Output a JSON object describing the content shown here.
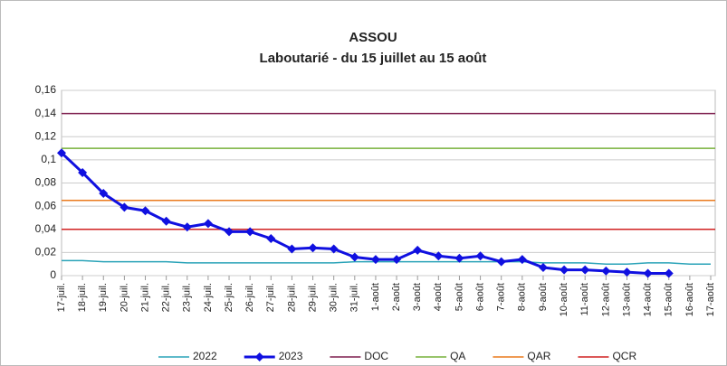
{
  "chart_data": {
    "type": "line",
    "title": "ASSOU",
    "subtitle": "Laboutarié - du 15 juillet au 15 août",
    "categories": [
      "17-juil.",
      "18-juil.",
      "19-juil.",
      "20-juil.",
      "21-juil.",
      "22-juil.",
      "23-juil.",
      "24-juil.",
      "25-juil.",
      "26-juil.",
      "27-juil.",
      "28-juil.",
      "29-juil.",
      "30-juil.",
      "31-juil.",
      "1-août",
      "2-août",
      "3-août",
      "4-août",
      "5-août",
      "6-août",
      "7-août",
      "8-août",
      "9-août",
      "10-août",
      "11-août",
      "12-août",
      "13-août",
      "14-août",
      "15-août",
      "16-août",
      "17-août"
    ],
    "series": [
      {
        "name": "2022",
        "color": "#2aa3b8",
        "marker": false,
        "values": [
          0.013,
          0.013,
          0.012,
          0.012,
          0.012,
          0.012,
          0.011,
          0.011,
          0.011,
          0.011,
          0.011,
          0.011,
          0.011,
          0.011,
          0.012,
          0.012,
          0.012,
          0.012,
          0.012,
          0.012,
          0.012,
          0.012,
          0.012,
          0.011,
          0.011,
          0.011,
          0.01,
          0.01,
          0.011,
          0.011,
          0.01,
          0.01
        ]
      },
      {
        "name": "2023",
        "color": "#1010e0",
        "marker": true,
        "values": [
          0.106,
          0.089,
          0.071,
          0.059,
          0.056,
          0.047,
          0.042,
          0.045,
          0.038,
          0.038,
          0.032,
          0.023,
          0.024,
          0.023,
          0.016,
          0.014,
          0.014,
          0.022,
          0.017,
          0.015,
          0.017,
          0.012,
          0.014,
          0.007,
          0.005,
          0.005,
          0.004,
          0.003,
          0.002,
          0.002,
          null,
          null
        ]
      }
    ],
    "reference_lines": [
      {
        "name": "DOC",
        "color": "#7e1e4e",
        "value": 0.14
      },
      {
        "name": "QA",
        "color": "#77b03a",
        "value": 0.11
      },
      {
        "name": "QAR",
        "color": "#ea7a1c",
        "value": 0.065
      },
      {
        "name": "QCR",
        "color": "#d02020",
        "value": 0.04
      }
    ],
    "ylim": [
      0,
      0.16
    ],
    "yticks": [
      0,
      {
        "value": 0.02,
        "label": "0,02"
      },
      {
        "value": 0.04,
        "label": "0,04"
      },
      {
        "value": 0.06,
        "label": "0,06"
      },
      {
        "value": 0.08,
        "label": "0,08"
      },
      {
        "value": 0.1,
        "label": "0,1"
      },
      {
        "value": 0.12,
        "label": "0,12"
      },
      {
        "value": 0.14,
        "label": "0,14"
      },
      {
        "value": 0.16,
        "label": "0,16"
      }
    ],
    "grid": true,
    "legend": "bottom"
  }
}
